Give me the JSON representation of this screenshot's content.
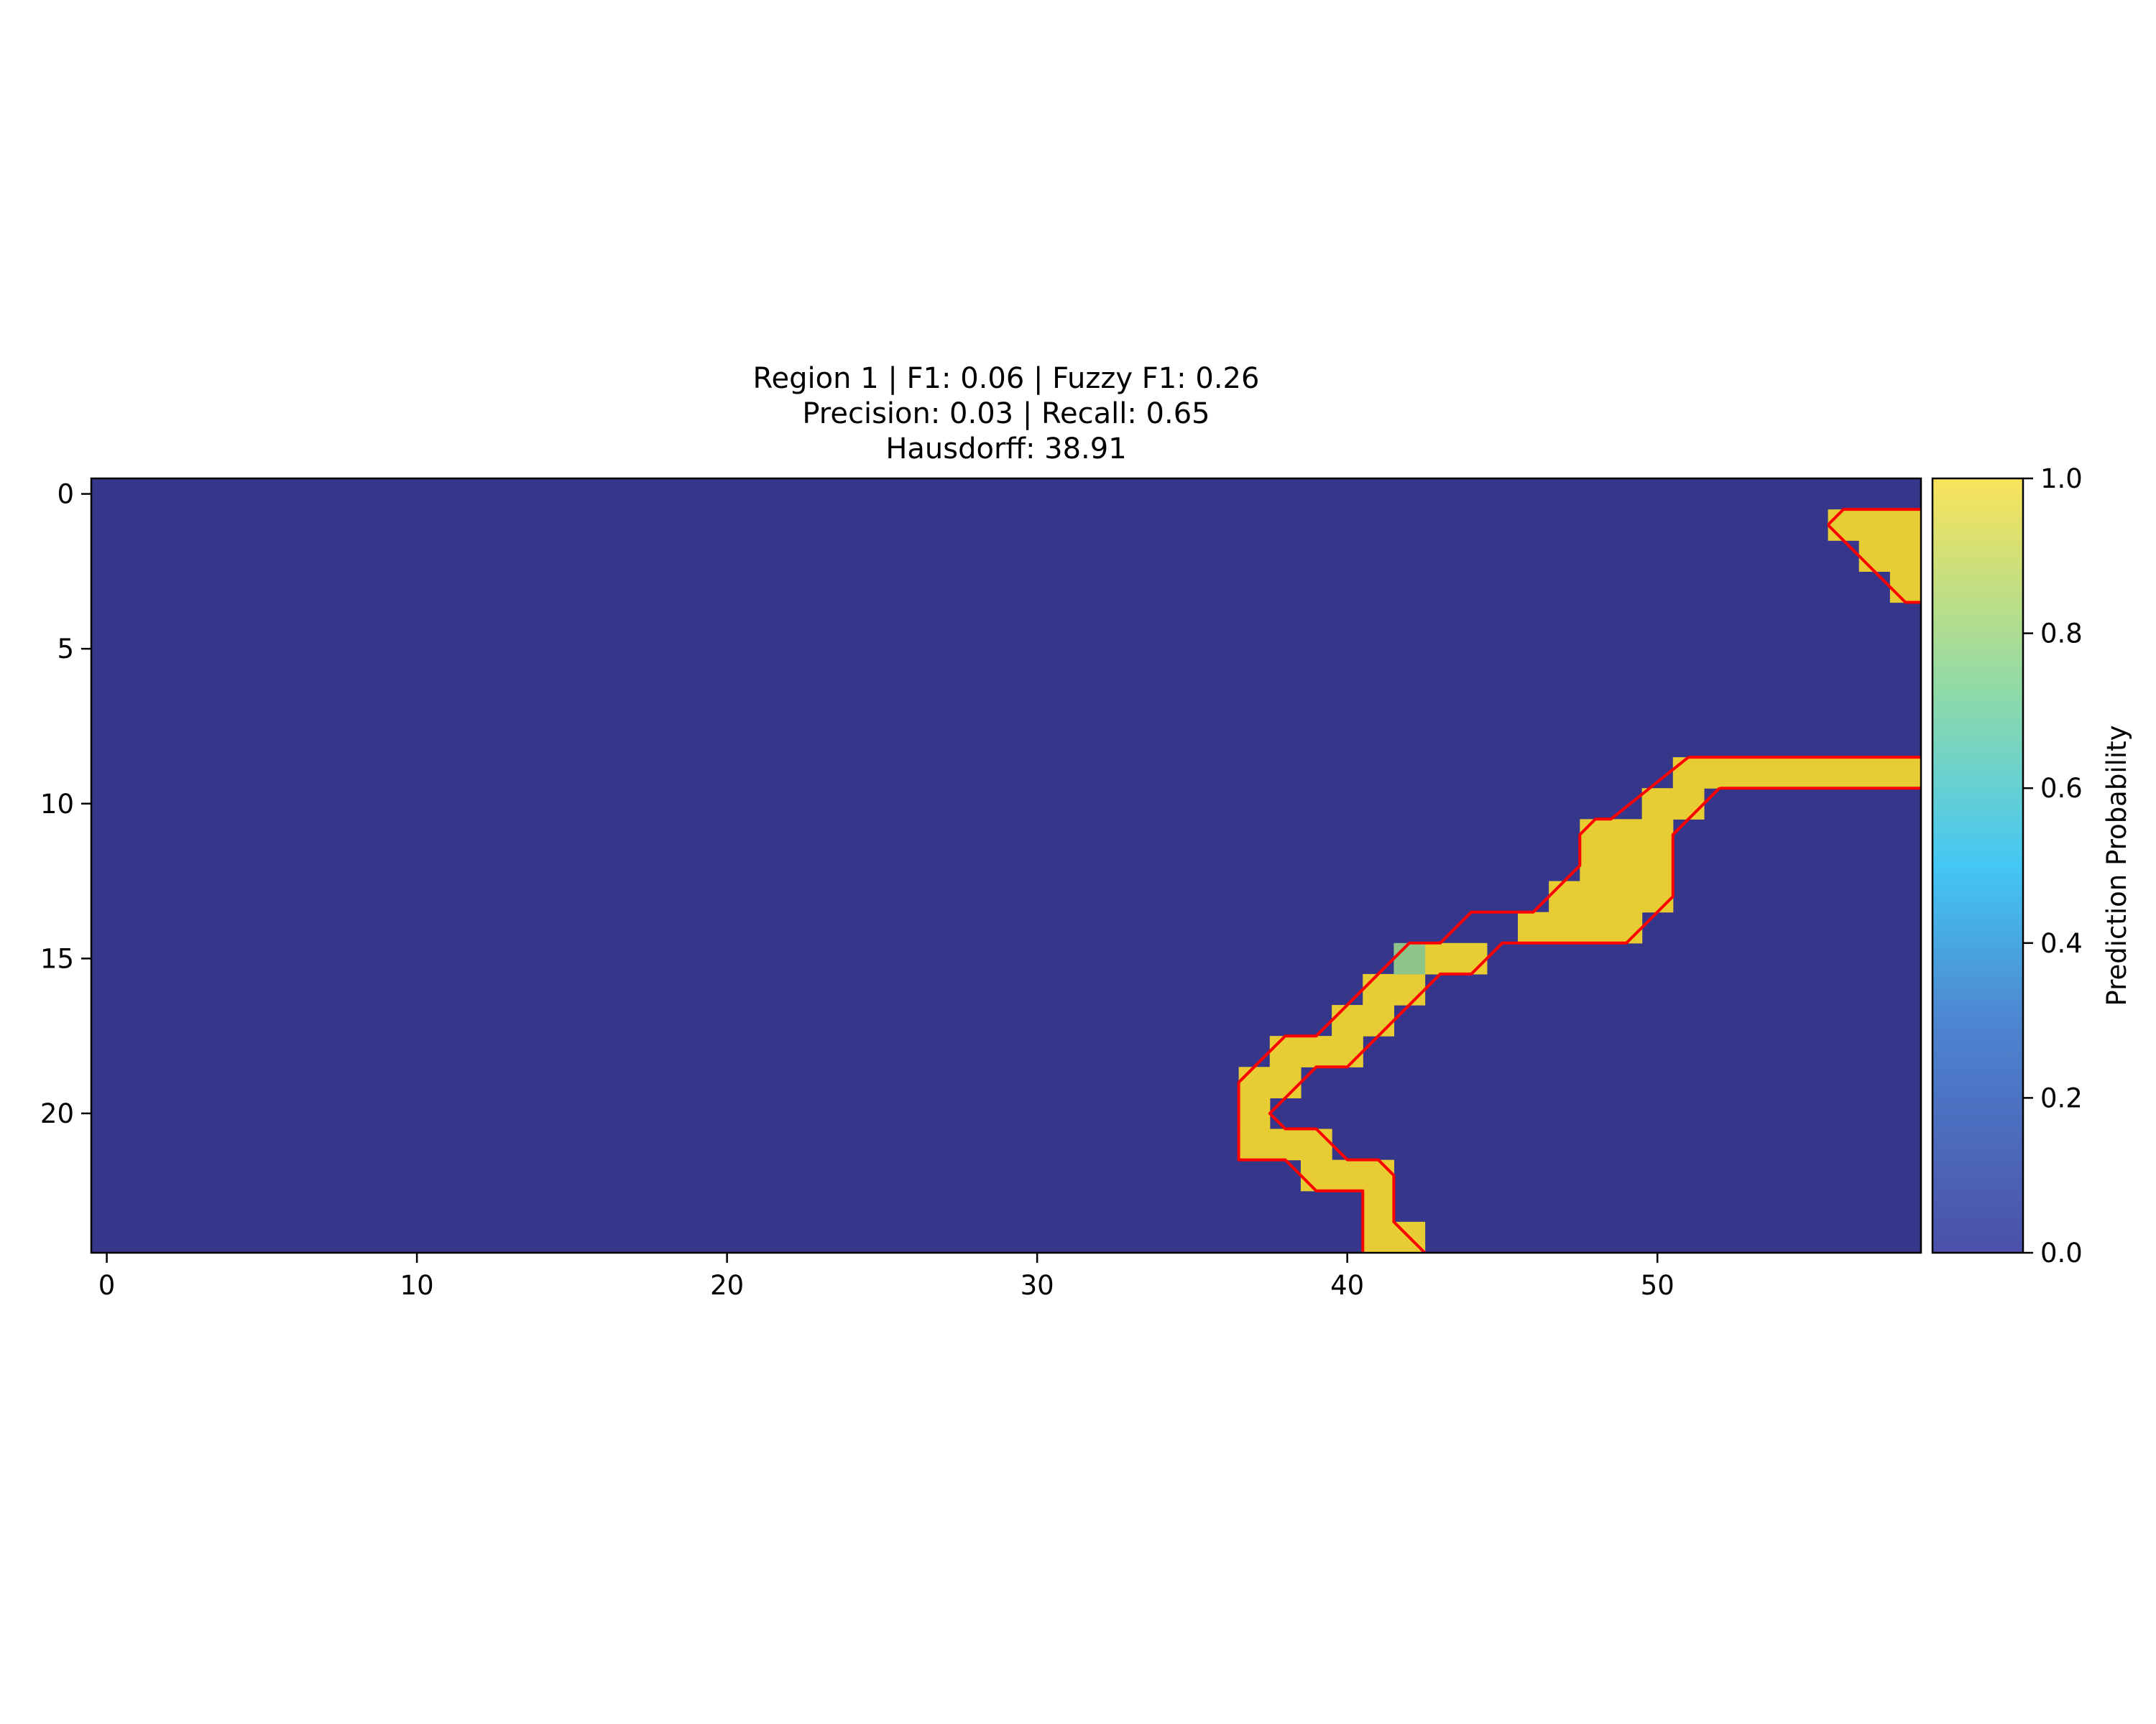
{
  "chart_data": {
    "type": "heatmap",
    "title_lines": [
      "Region 1 | F1: 0.06 | Fuzzy F1: 0.26",
      "Precision: 0.03 | Recall: 0.65",
      "Hausdorff: 38.91"
    ],
    "grid": {
      "cols": 59,
      "rows": 25
    },
    "x_ticks": [
      0,
      10,
      20,
      30,
      40,
      50
    ],
    "y_ticks": [
      0,
      5,
      10,
      15,
      20
    ],
    "xlim": [
      -0.5,
      58.5
    ],
    "ylim": [
      24.5,
      -0.5
    ],
    "background_value": 0.0,
    "high_value": 0.95,
    "high_cells": [
      [
        1,
        56
      ],
      [
        1,
        57
      ],
      [
        1,
        58
      ],
      [
        2,
        57
      ],
      [
        2,
        58
      ],
      [
        3,
        58
      ],
      [
        9,
        51
      ],
      [
        9,
        52
      ],
      [
        9,
        53
      ],
      [
        9,
        54
      ],
      [
        9,
        55
      ],
      [
        9,
        56
      ],
      [
        9,
        57
      ],
      [
        9,
        58
      ],
      [
        10,
        50
      ],
      [
        10,
        51
      ],
      [
        11,
        48
      ],
      [
        11,
        49
      ],
      [
        11,
        50
      ],
      [
        12,
        48
      ],
      [
        12,
        49
      ],
      [
        12,
        50
      ],
      [
        13,
        47
      ],
      [
        13,
        48
      ],
      [
        13,
        49
      ],
      [
        13,
        50
      ],
      [
        14,
        46
      ],
      [
        14,
        47
      ],
      [
        14,
        48
      ],
      [
        14,
        49
      ],
      [
        15,
        43
      ],
      [
        15,
        44
      ],
      [
        16,
        41
      ],
      [
        16,
        42
      ],
      [
        17,
        40
      ],
      [
        17,
        41
      ],
      [
        18,
        38
      ],
      [
        18,
        39
      ],
      [
        18,
        40
      ],
      [
        19,
        37
      ],
      [
        19,
        38
      ],
      [
        20,
        37
      ],
      [
        21,
        37
      ],
      [
        21,
        38
      ],
      [
        21,
        39
      ],
      [
        22,
        39
      ],
      [
        22,
        40
      ],
      [
        22,
        41
      ],
      [
        23,
        41
      ],
      [
        24,
        41
      ],
      [
        24,
        42
      ]
    ],
    "medium_value": 0.8,
    "medium_cells": [
      [
        15,
        42
      ]
    ],
    "outline_color": "#ff0000",
    "outline_polylines": [
      [
        [
          55.5,
          1.0
        ],
        [
          56.0,
          0.5
        ],
        [
          58.5,
          0.5
        ]
      ],
      [
        [
          55.5,
          1.0
        ],
        [
          58.0,
          3.5
        ],
        [
          58.5,
          3.5
        ]
      ],
      [
        [
          51.0,
          8.5
        ],
        [
          58.5,
          8.5
        ]
      ],
      [
        [
          52.0,
          9.5
        ],
        [
          58.5,
          9.5
        ]
      ],
      [
        [
          51.0,
          8.5
        ],
        [
          48.5,
          10.5
        ],
        [
          48.0,
          10.5
        ],
        [
          47.5,
          11.0
        ],
        [
          47.5,
          12.0
        ],
        [
          46.0,
          13.5
        ],
        [
          44.0,
          13.5
        ],
        [
          43.0,
          14.5
        ],
        [
          42.0,
          14.5
        ],
        [
          39.0,
          17.5
        ],
        [
          38.0,
          17.5
        ],
        [
          36.5,
          19.0
        ],
        [
          36.5,
          21.5
        ],
        [
          38.0,
          21.5
        ],
        [
          39.0,
          22.5
        ],
        [
          40.5,
          22.5
        ],
        [
          40.5,
          24.5
        ]
      ],
      [
        [
          52.0,
          9.5
        ],
        [
          50.5,
          11.0
        ],
        [
          50.5,
          13.0
        ],
        [
          49.0,
          14.5
        ],
        [
          45.0,
          14.5
        ],
        [
          44.0,
          15.5
        ],
        [
          43.0,
          15.5
        ],
        [
          41.0,
          17.5
        ],
        [
          40.0,
          18.5
        ],
        [
          39.0,
          18.5
        ],
        [
          37.5,
          20.0
        ],
        [
          38.0,
          20.5
        ],
        [
          39.0,
          20.5
        ],
        [
          40.0,
          21.5
        ],
        [
          41.0,
          21.5
        ],
        [
          41.5,
          22.0
        ],
        [
          41.5,
          23.5
        ],
        [
          42.5,
          24.5
        ]
      ]
    ],
    "colorbar": {
      "label": "Prediction Probability",
      "ticks": [
        "0.0",
        "0.2",
        "0.4",
        "0.6",
        "0.8",
        "1.0"
      ],
      "range": [
        0.0,
        1.0
      ],
      "colors": [
        "#4b50aa",
        "#4d86d0",
        "#44c7f5",
        "#8ddaa9",
        "#f9e35a"
      ]
    },
    "grid_lines": false
  }
}
